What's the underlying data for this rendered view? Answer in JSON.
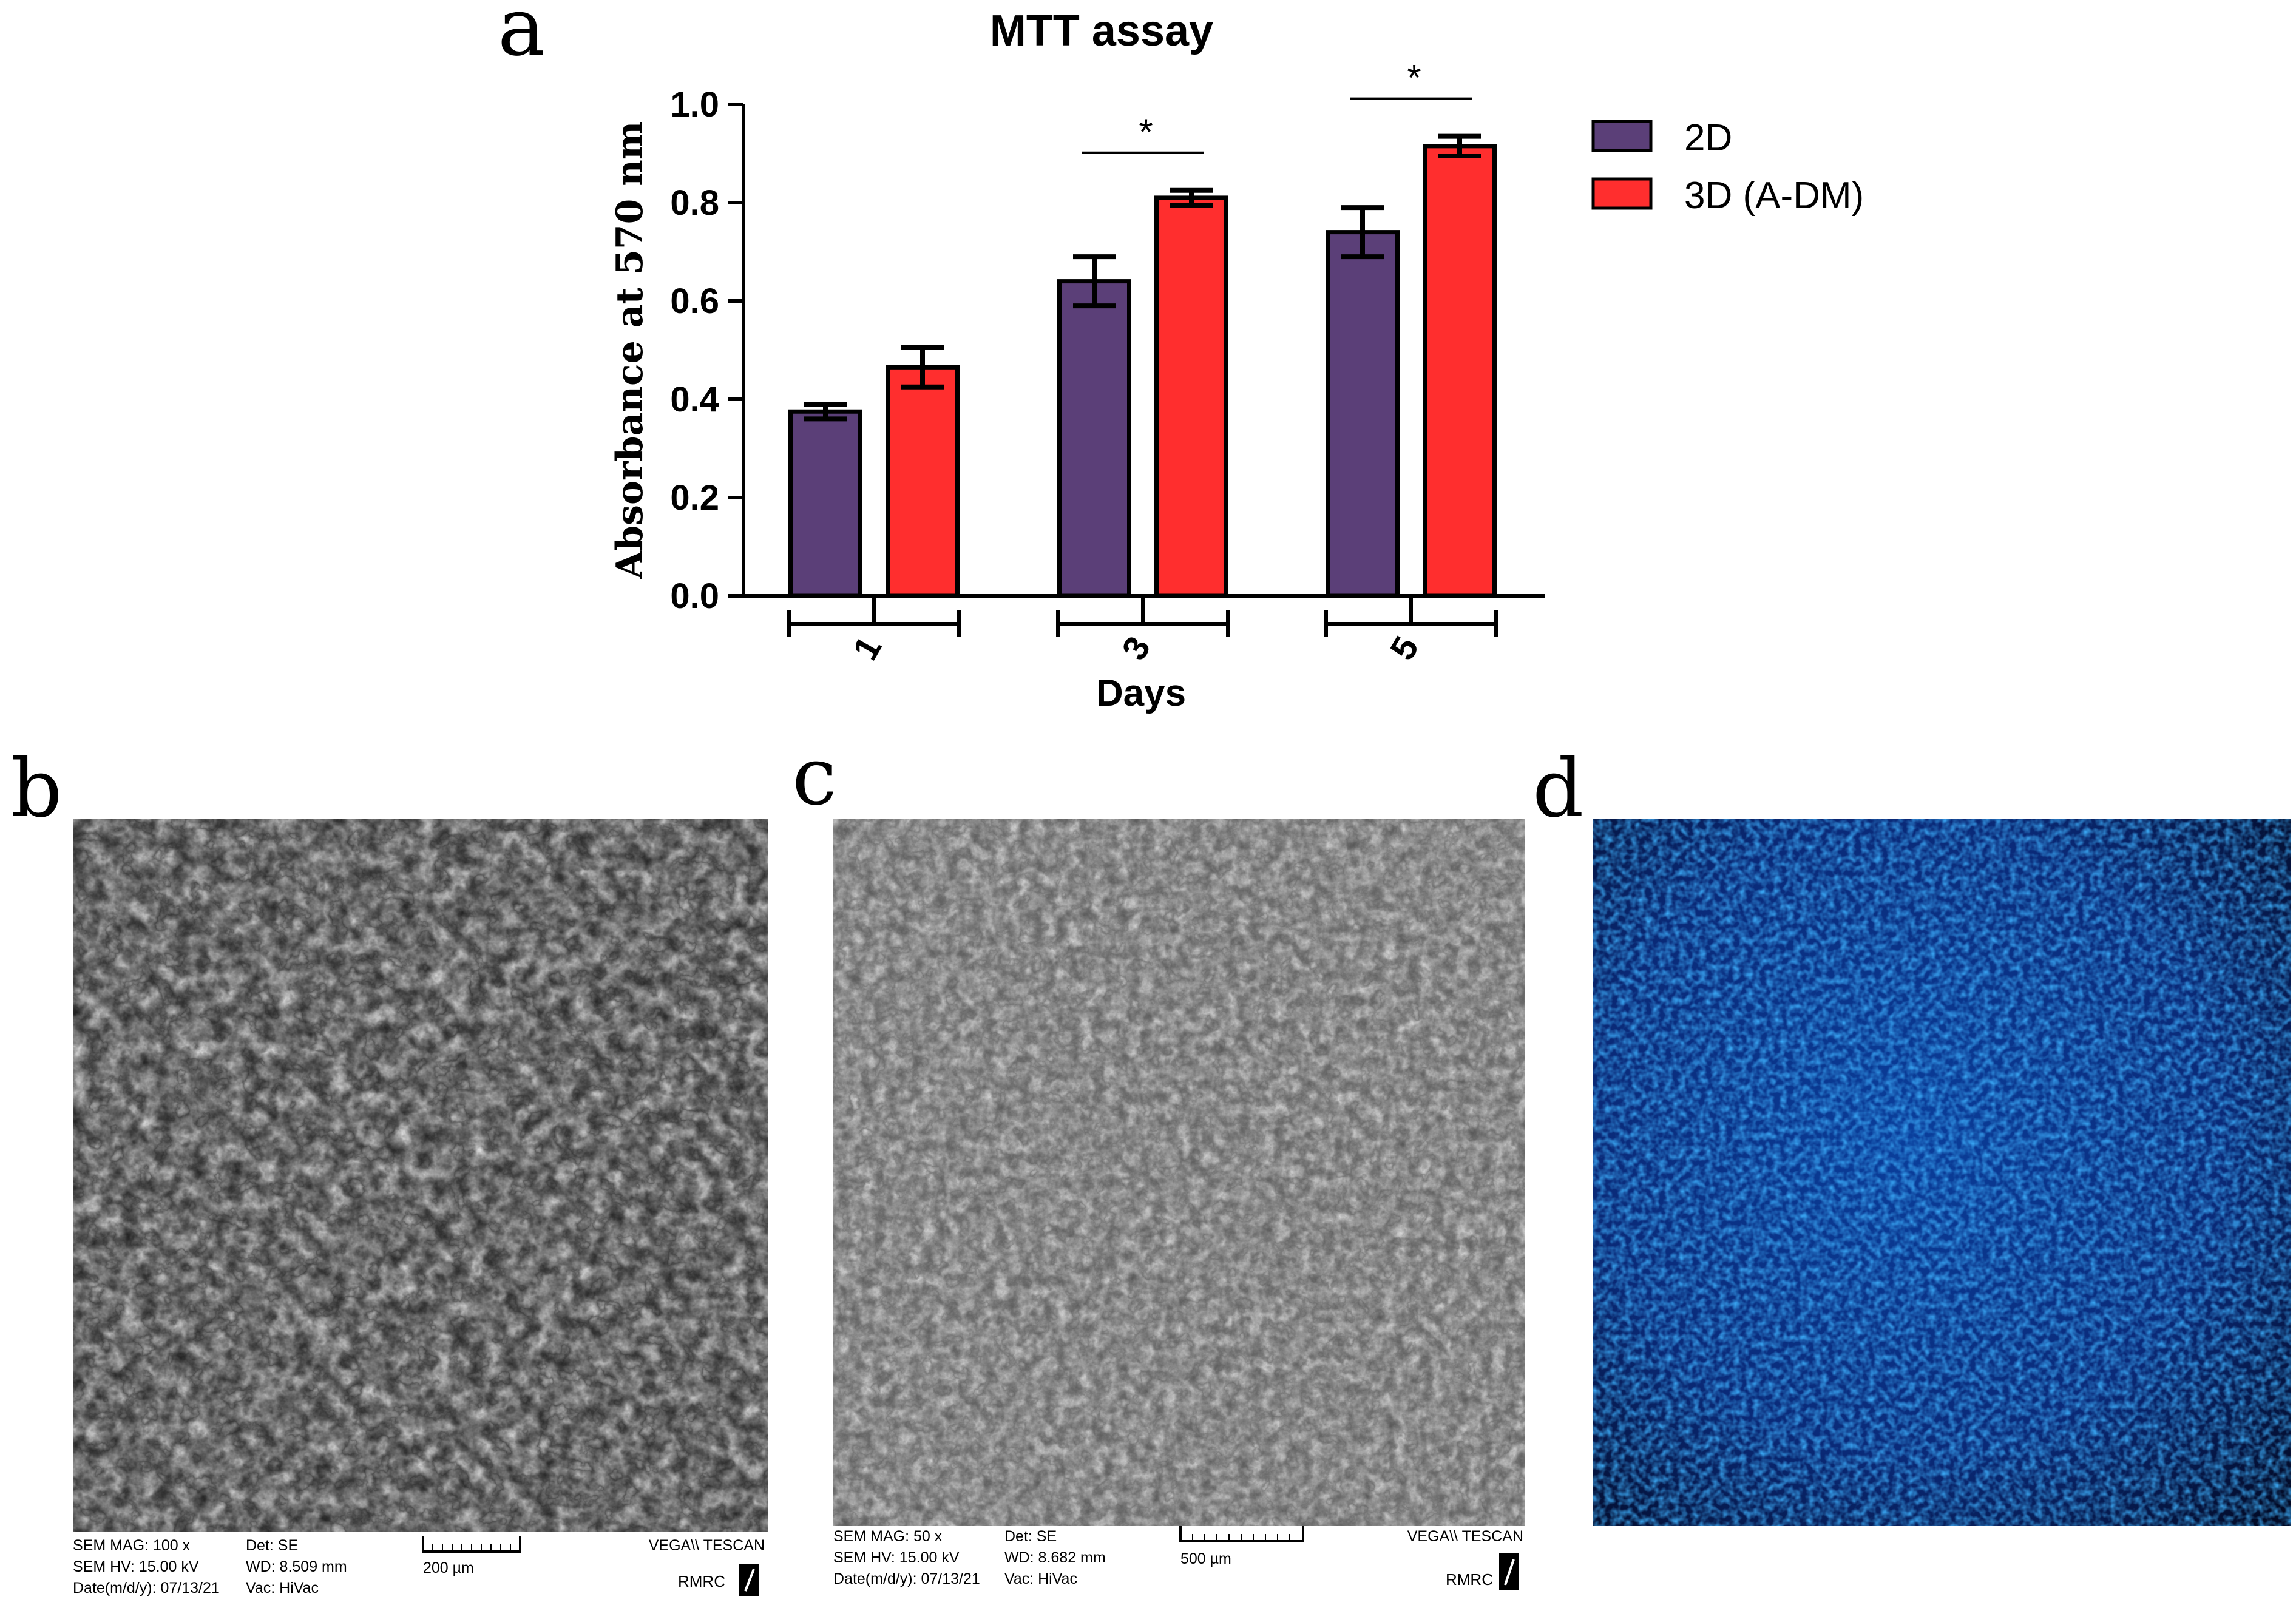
{
  "panels": {
    "a": "a",
    "b": "b",
    "c": "c",
    "d": "d"
  },
  "chart_data": {
    "type": "bar",
    "title": "MTT assay",
    "xlabel": "Days",
    "ylabel": "Absorbance at 570 nm",
    "categories": [
      "1",
      "3",
      "5"
    ],
    "ylim": [
      0,
      1.0
    ],
    "yticks": [
      "0.0",
      "0.2",
      "0.4",
      "0.6",
      "0.8",
      "1.0"
    ],
    "series": [
      {
        "name": "2D",
        "color": "#5b3f78",
        "values": [
          0.375,
          0.64,
          0.74
        ],
        "errors": [
          0.015,
          0.05,
          0.05
        ]
      },
      {
        "name": "3D (A-DM)",
        "color": "#ff2e2e",
        "values": [
          0.465,
          0.81,
          0.915
        ],
        "errors": [
          0.04,
          0.015,
          0.02
        ]
      }
    ],
    "significance": [
      {
        "category": "3",
        "label": "*"
      },
      {
        "category": "5",
        "label": "*"
      }
    ]
  },
  "sem": {
    "b": {
      "mag": "SEM MAG: 100 x",
      "hv": "SEM HV: 15.00 kV",
      "date": "Date(m/d/y): 07/13/21",
      "det": "Det: SE",
      "wd": "WD: 8.509 mm",
      "vac": "Vac: HiVac",
      "scale": "200 µm",
      "vendor": "VEGA\\\\ TESCAN",
      "lab": "RMRC"
    },
    "c": {
      "mag": "SEM MAG: 50 x",
      "hv": "SEM HV: 15.00 kV",
      "date": "Date(m/d/y): 07/13/21",
      "det": "Det: SE",
      "wd": "WD: 8.682 mm",
      "vac": "Vac: HiVac",
      "scale": "500 µm",
      "vendor": "VEGA\\\\ TESCAN",
      "lab": "RMRC"
    }
  }
}
